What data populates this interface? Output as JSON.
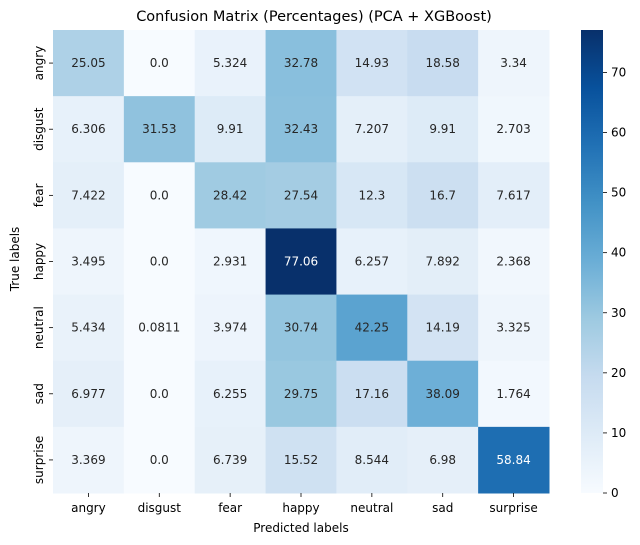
{
  "chart_data": {
    "type": "heatmap",
    "title": "Confusion Matrix (Percentages) (PCA + XGBoost)",
    "xlabel": "Predicted labels",
    "ylabel": "True labels",
    "x_categories": [
      "angry",
      "disgust",
      "fear",
      "happy",
      "neutral",
      "sad",
      "surprise"
    ],
    "y_categories": [
      "angry",
      "disgust",
      "fear",
      "happy",
      "neutral",
      "sad",
      "surprise"
    ],
    "values": [
      [
        25.05,
        0.0,
        5.324,
        32.78,
        14.93,
        18.58,
        3.34
      ],
      [
        6.306,
        31.53,
        9.91,
        32.43,
        7.207,
        9.91,
        2.703
      ],
      [
        7.422,
        0.0,
        28.42,
        27.54,
        12.3,
        16.7,
        7.617
      ],
      [
        3.495,
        0.0,
        2.931,
        77.06,
        6.257,
        7.892,
        2.368
      ],
      [
        5.434,
        0.0811,
        3.974,
        30.74,
        42.25,
        14.19,
        3.325
      ],
      [
        6.977,
        0.0,
        6.255,
        29.75,
        17.16,
        38.09,
        1.764
      ],
      [
        3.369,
        0.0,
        6.739,
        15.52,
        8.544,
        6.98,
        58.84
      ]
    ],
    "cell_text": [
      [
        "25.05",
        "0.0",
        "5.324",
        "32.78",
        "14.93",
        "18.58",
        "3.34"
      ],
      [
        "6.306",
        "31.53",
        "9.91",
        "32.43",
        "7.207",
        "9.91",
        "2.703"
      ],
      [
        "7.422",
        "0.0",
        "28.42",
        "27.54",
        "12.3",
        "16.7",
        "7.617"
      ],
      [
        "3.495",
        "0.0",
        "2.931",
        "77.06",
        "6.257",
        "7.892",
        "2.368"
      ],
      [
        "5.434",
        "0.0811",
        "3.974",
        "30.74",
        "42.25",
        "14.19",
        "3.325"
      ],
      [
        "6.977",
        "0.0",
        "6.255",
        "29.75",
        "17.16",
        "38.09",
        "1.764"
      ],
      [
        "3.369",
        "0.0",
        "6.739",
        "15.52",
        "8.544",
        "6.98",
        "58.84"
      ]
    ],
    "colormap": "Blues",
    "colormap_stops": [
      "#f7fbff",
      "#deebf7",
      "#c6dbef",
      "#9ecae1",
      "#6baed6",
      "#4292c6",
      "#2171b5",
      "#08519c",
      "#08306b"
    ],
    "colorbar": {
      "range": [
        0,
        77.06
      ],
      "ticks": [
        0,
        10,
        20,
        30,
        40,
        50,
        60,
        70
      ],
      "tick_labels": [
        "0",
        "10",
        "20",
        "30",
        "40",
        "50",
        "60",
        "70"
      ]
    }
  }
}
